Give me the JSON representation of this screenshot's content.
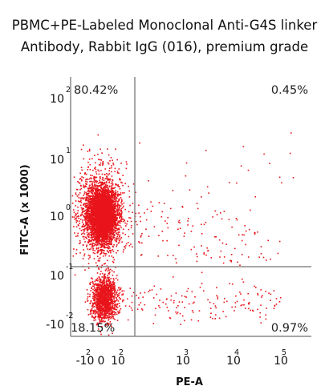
{
  "chart_data": {
    "type": "scatter",
    "title": "PBMC+PE-Labeled Monoclonal Anti-G4S linker",
    "subtitle": "Antibody, Rabbit IgG (016), premium grade",
    "xlabel": "PE-A",
    "ylabel": "FITC-A (x 1000)",
    "x_scale": "biexponential",
    "y_scale": "biexponential",
    "x_ticks": [
      {
        "base": "-10",
        "exp": "2"
      },
      {
        "base": "0",
        "exp": ""
      },
      {
        "base": "10",
        "exp": "2"
      },
      {
        "base": "10",
        "exp": "3"
      },
      {
        "base": "10",
        "exp": "4"
      },
      {
        "base": "10",
        "exp": "5"
      }
    ],
    "y_ticks": [
      {
        "base": "10",
        "exp": "2"
      },
      {
        "base": "10",
        "exp": "1"
      },
      {
        "base": "10",
        "exp": "0"
      },
      {
        "base": "10",
        "exp": "-1"
      },
      {
        "base": "-10",
        "exp": "-2"
      }
    ],
    "quadrants": [
      {
        "position": "upper-left",
        "percent": "80.42%"
      },
      {
        "position": "upper-right",
        "percent": "0.45%"
      },
      {
        "position": "lower-left",
        "percent": "18.15%"
      },
      {
        "position": "lower-right",
        "percent": "0.97%"
      }
    ],
    "populations": [
      {
        "name": "upper-left population",
        "percent": 80.42
      },
      {
        "name": "lower-left population",
        "percent": 18.15
      },
      {
        "name": "upper-right population",
        "percent": 0.45
      },
      {
        "name": "lower-right population",
        "percent": 0.97
      }
    ],
    "gate_lines": {
      "vertical": "between 0 and 10^3 on PE-A",
      "horizontal": "near 10^-1 on FITC-A"
    },
    "point_color": "#e8141b",
    "grid": false,
    "legend": "none"
  }
}
